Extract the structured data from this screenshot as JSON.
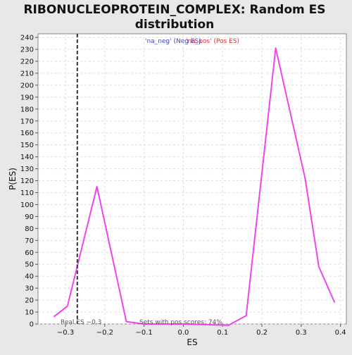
{
  "chart_data": {
    "type": "line",
    "title": "RIBONUCLEOPROTEIN_COMPLEX: Random ES distribution",
    "title_lines": [
      "RIBONUCLEOPROTEIN_COMPLEX: Random ES",
      "distribution"
    ],
    "xlabel": "ES",
    "ylabel": "P(ES)",
    "xlim": [
      -0.37,
      0.415
    ],
    "ylim": [
      0,
      243
    ],
    "x_ticks": [
      -0.3,
      -0.2,
      -0.1,
      0.0,
      0.1,
      0.2,
      0.3,
      0.4
    ],
    "x_tick_labels": [
      "−0.3",
      "−0.2",
      "−0.1",
      "0.0",
      "0.1",
      "0.2",
      "0.3",
      "0.4"
    ],
    "y_ticks": [
      0,
      10,
      20,
      30,
      40,
      50,
      60,
      70,
      80,
      90,
      100,
      110,
      120,
      130,
      140,
      150,
      160,
      170,
      180,
      190,
      200,
      210,
      220,
      230,
      240
    ],
    "grid": true,
    "legend": [
      {
        "label": "'na_neg' (Neg ES)",
        "color": "#4444cc"
      },
      {
        "label": "'na_pos' (Pos ES)",
        "color": "#dd3333"
      }
    ],
    "series": [
      {
        "color": "#ee44ee",
        "x": [
          -0.33,
          -0.295,
          -0.22,
          -0.145,
          -0.1,
          0.0,
          0.115,
          0.16,
          0.235,
          0.31,
          0.345,
          0.385
        ],
        "y": [
          6,
          15,
          115,
          2,
          0,
          0,
          -1,
          7,
          231,
          122,
          48,
          18
        ]
      }
    ],
    "real_es": -0.27,
    "annotations": {
      "real_es_label": "Real ES −0.3",
      "pos_scores_label": "Sets with pos scores: 74%"
    }
  }
}
